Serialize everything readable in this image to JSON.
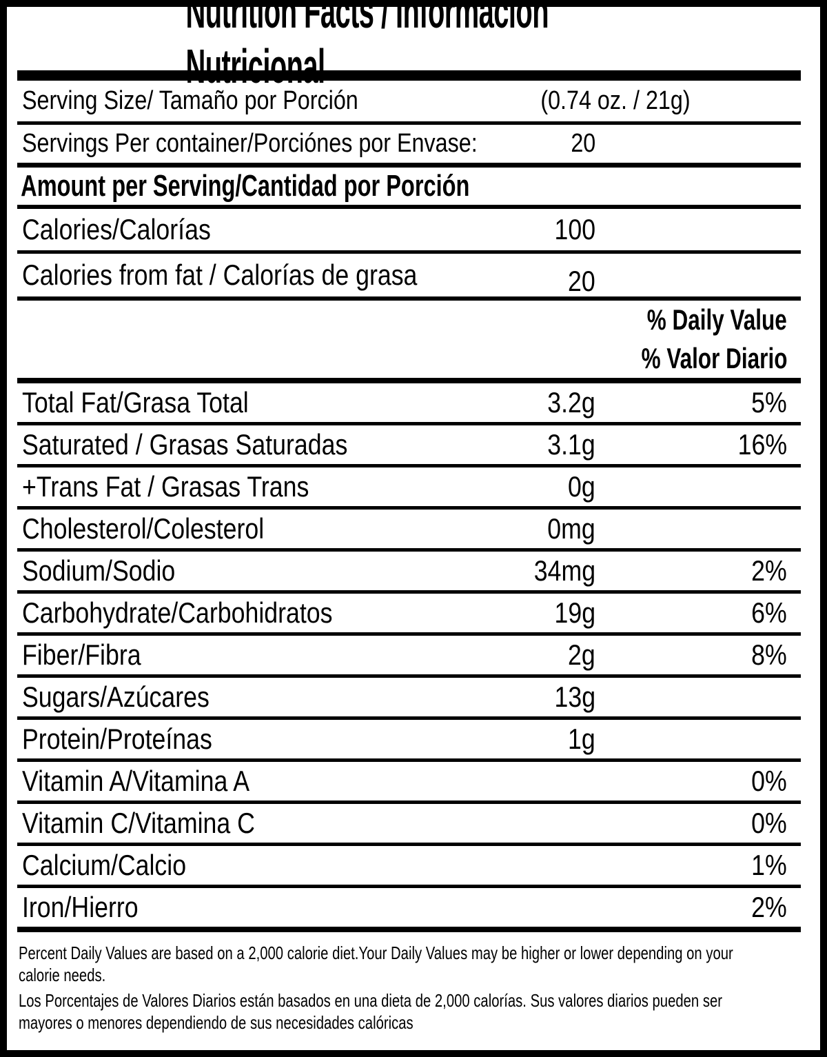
{
  "colors": {
    "ink": "#000000",
    "paper": "#ffffff"
  },
  "title": "Nutrition Facts / Información Nutricional",
  "serving_rows": [
    {
      "label": "Serving Size/ Tamaño por Porción",
      "amount": "(0.74 oz. / 21g)"
    },
    {
      "label": "Servings Per container/Porciónes por Envase:",
      "amount": "20"
    }
  ],
  "amount_per_serving_heading": "Amount per Serving/Cantidad por Porción",
  "calorie_rows": [
    {
      "label": "Calories/Calorías",
      "amount": "100"
    },
    {
      "label": "Calories from fat / Calorías de grasa",
      "amount": "20"
    }
  ],
  "daily_value_header": {
    "en": "% Daily Value",
    "es": "% Valor Diario"
  },
  "nutrient_rows": [
    {
      "label": "Total Fat/Grasa Total",
      "amount": "3.2g",
      "dv": "5%"
    },
    {
      "label": "Saturated / Grasas Saturadas",
      "amount": "3.1g",
      "dv": "16%"
    },
    {
      "label": "+Trans Fat / Grasas Trans",
      "amount": "0g",
      "dv": ""
    },
    {
      "label": "Cholesterol/Colesterol",
      "amount": "0mg",
      "dv": ""
    },
    {
      "label": "Sodium/Sodio",
      "amount": "34mg",
      "dv": "2%"
    },
    {
      "label": "Carbohydrate/Carbohidratos",
      "amount": "19g",
      "dv": "6%"
    },
    {
      "label": "Fiber/Fibra",
      "amount": "2g",
      "dv": "8%"
    },
    {
      "label": "Sugars/Azúcares",
      "amount": "13g",
      "dv": ""
    },
    {
      "label": "Protein/Proteínas",
      "amount": "1g",
      "dv": ""
    },
    {
      "label": "Vitamin A/Vitamina A",
      "amount": "",
      "dv": "0%"
    },
    {
      "label": "Vitamin C/Vitamina C",
      "amount": "",
      "dv": "0%"
    },
    {
      "label": "Calcium/Calcio",
      "amount": "",
      "dv": "1%"
    },
    {
      "label": "Iron/Hierro",
      "amount": "",
      "dv": "2%"
    }
  ],
  "footnote": {
    "en_lines": [
      "Percent Daily Values are based on a 2,000 calorie diet.Your Daily Values may be higher or lower depending on your",
      "calorie needs."
    ],
    "es_lines": [
      "Los Porcentajes de Valores Diarios están basados en una dieta de 2,000 calorías. Sus valores diarios pueden ser",
      "mayores o menores dependiendo de sus necesidades calóricas"
    ]
  }
}
